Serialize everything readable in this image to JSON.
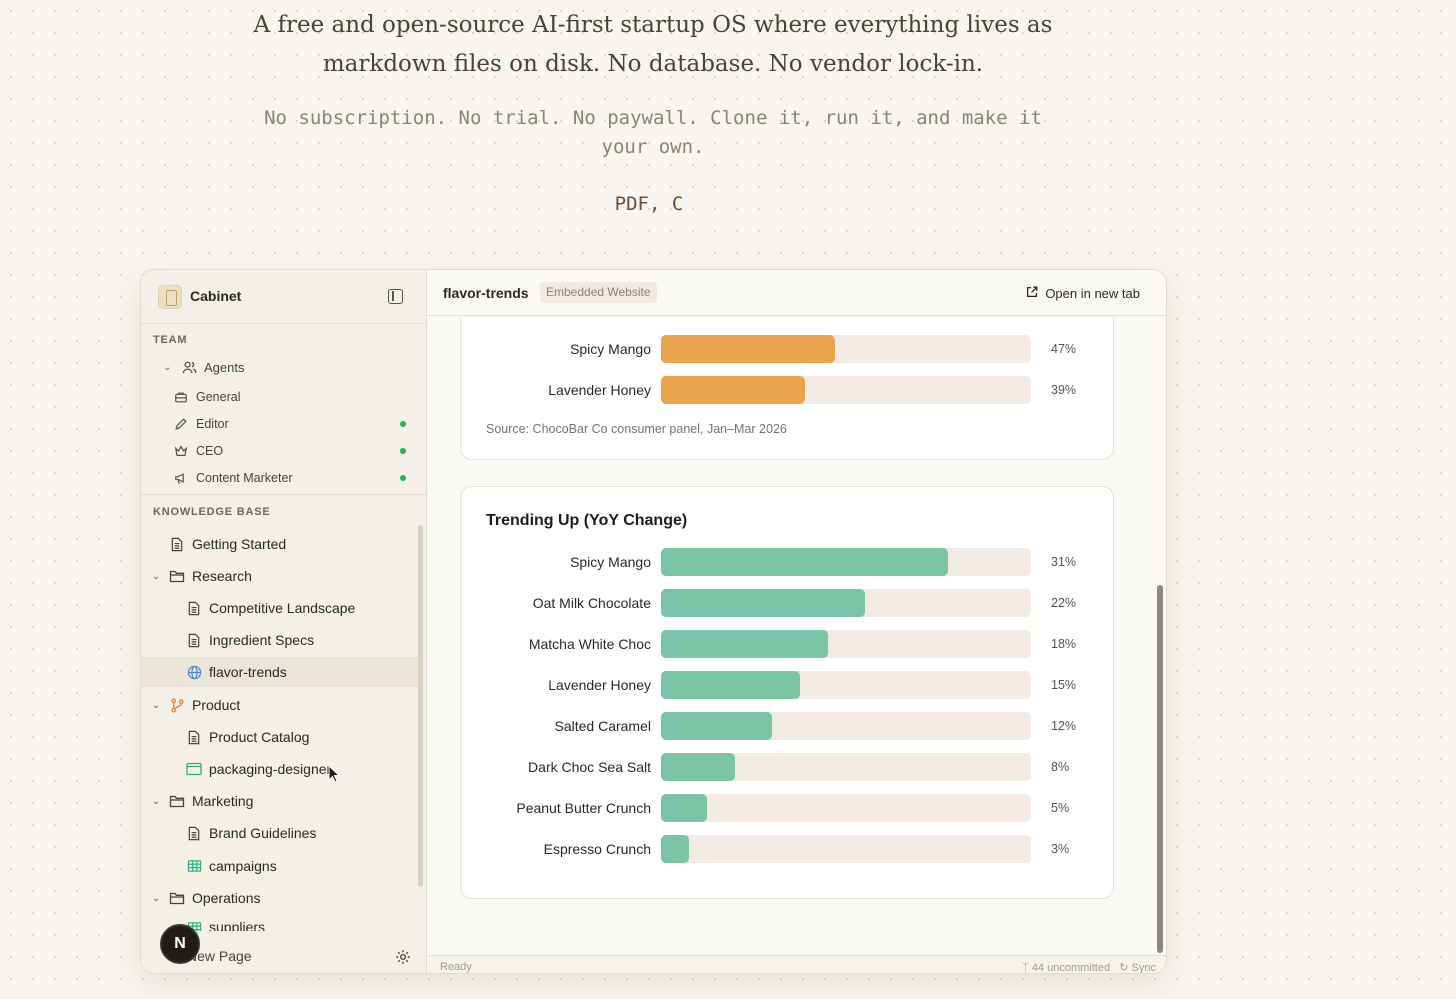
{
  "hero": {
    "tagline_line1": "A free and open-source AI-first startup OS where everything lives as",
    "tagline_line2": "markdown files on disk. No database. No vendor lock-in.",
    "sub_line1": "No subscription. No trial. No paywall. Clone it, run it, and make it",
    "sub_line2": "your own.",
    "typing": "PDF, C"
  },
  "sidebar": {
    "app_title": "Cabinet",
    "team_label": "TEAM",
    "team_items": [
      {
        "label": "Agents",
        "icon": "users-icon"
      },
      {
        "label": "General",
        "icon": "briefcase-icon"
      },
      {
        "label": "Editor",
        "icon": "pencil-icon",
        "status": "online"
      },
      {
        "label": "CEO",
        "icon": "crown-icon",
        "status": "online"
      },
      {
        "label": "Content Marketer",
        "icon": "megaphone-icon",
        "status": "online"
      }
    ],
    "kb_label": "KNOWLEDGE BASE",
    "kb_items": [
      {
        "label": "Getting Started",
        "icon": "document-icon"
      },
      {
        "label": "Research",
        "icon": "folder-icon"
      },
      {
        "label": "Competitive Landscape",
        "icon": "document-icon"
      },
      {
        "label": "Ingredient Specs",
        "icon": "document-icon"
      },
      {
        "label": "flavor-trends",
        "icon": "globe-icon",
        "active": true
      },
      {
        "label": "Product",
        "icon": "git-branch-icon"
      },
      {
        "label": "Product Catalog",
        "icon": "document-icon"
      },
      {
        "label": "packaging-designer",
        "icon": "app-window-icon"
      },
      {
        "label": "Marketing",
        "icon": "folder-icon"
      },
      {
        "label": "Brand Guidelines",
        "icon": "document-icon"
      },
      {
        "label": "campaigns",
        "icon": "table-icon"
      },
      {
        "label": "Operations",
        "icon": "folder-icon"
      },
      {
        "label": "suppliers",
        "icon": "table-icon"
      }
    ],
    "avatar_letter": "N",
    "new_page_label": "New Page"
  },
  "topbar": {
    "title": "flavor-trends",
    "badge": "Embedded Website",
    "open_tab": "Open in new tab"
  },
  "statusbar": {
    "left": "Ready",
    "uncommitted": "44 uncommitted",
    "sync": "Sync"
  },
  "colors": {
    "orange_bar": "#e9a54b",
    "teal_bar": "#7cc4a8",
    "track": "#f1ebe4",
    "status_online": "#22b35a"
  },
  "chart_data": [
    {
      "type": "bar",
      "orientation": "horizontal",
      "title": "",
      "categories": [
        "Spicy Mango",
        "Lavender Honey"
      ],
      "values": [
        47,
        39
      ],
      "value_labels": [
        "47%",
        "39%"
      ],
      "source": "Source: ChocoBar Co consumer panel, Jan–Mar 2026",
      "color": "#e9a54b"
    },
    {
      "type": "bar",
      "orientation": "horizontal",
      "title": "Trending Up (YoY Change)",
      "categories": [
        "Spicy Mango",
        "Oat Milk Chocolate",
        "Matcha White Choc",
        "Lavender Honey",
        "Salted Caramel",
        "Dark Choc Sea Salt",
        "Peanut Butter Crunch",
        "Espresso Crunch"
      ],
      "values": [
        31,
        22,
        18,
        15,
        12,
        8,
        5,
        3
      ],
      "value_labels": [
        "31%",
        "22%",
        "18%",
        "15%",
        "12%",
        "8%",
        "5%",
        "3%"
      ],
      "color": "#7cc4a8"
    }
  ]
}
